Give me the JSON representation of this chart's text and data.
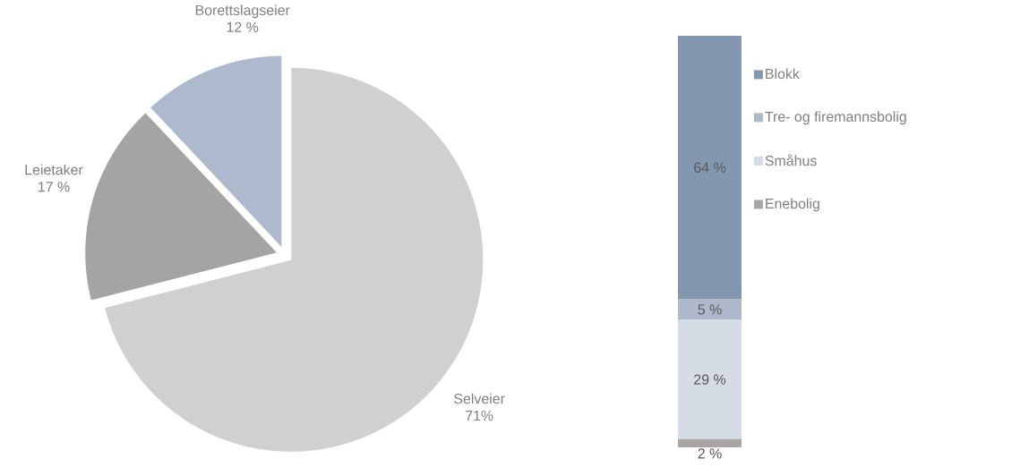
{
  "chart_data": [
    {
      "type": "pie",
      "categories": [
        "Selveier",
        "Leietaker",
        "Borettslagseier"
      ],
      "values": [
        71,
        17,
        12
      ],
      "colors": [
        "#d0d0d0",
        "#a5a4a2",
        "#adb9cd"
      ],
      "value_labels": [
        "71%",
        "17 %",
        "12 %"
      ]
    },
    {
      "type": "bar",
      "stacked": true,
      "legend": "right",
      "categories": [
        null
      ],
      "series": [
        {
          "name": "Enebolig",
          "color": "#aaa5a5",
          "values": [
            2
          ],
          "value_labels": [
            "2 %"
          ]
        },
        {
          "name": "Småhus",
          "color": "#d6dce5",
          "values": [
            29
          ],
          "value_labels": [
            "29 %"
          ]
        },
        {
          "name": "Tre- og firemannsbolig",
          "color": "#adb9ca",
          "values": [
            5
          ],
          "value_labels": [
            "5 %"
          ]
        },
        {
          "name": "Blokk",
          "color": "#8497b0",
          "values": [
            64
          ],
          "value_labels": [
            "64 %"
          ]
        }
      ]
    }
  ]
}
